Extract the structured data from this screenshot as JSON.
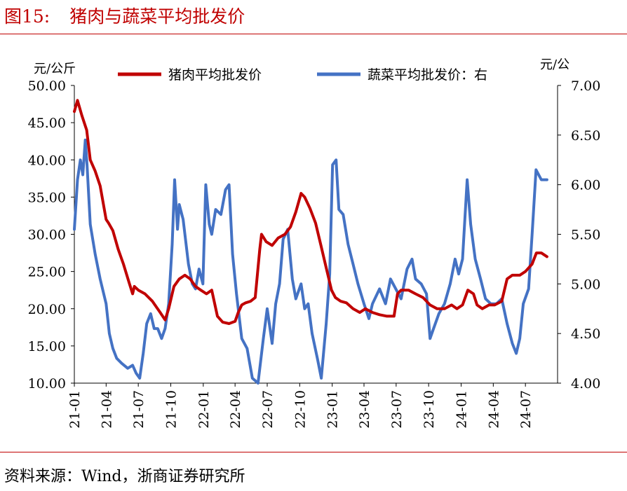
{
  "figure": {
    "number": "图15:",
    "title": "猪肉与蔬菜平均批发价",
    "source": "资料来源：Wind，浙商证券研究所"
  },
  "chart_data": {
    "type": "line",
    "left_axis": {
      "unit": "元/公斤",
      "min": 10,
      "max": 50,
      "ticks": [
        "10.00",
        "15.00",
        "20.00",
        "25.00",
        "30.00",
        "35.00",
        "40.00",
        "45.00",
        "50.00"
      ]
    },
    "right_axis": {
      "unit": "元/公",
      "min": 4,
      "max": 7,
      "ticks": [
        "4.00",
        "4.50",
        "5.00",
        "5.50",
        "6.00",
        "6.50",
        "7.00"
      ]
    },
    "x_ticks": [
      "21-01",
      "21-04",
      "21-07",
      "21-10",
      "22-01",
      "22-04",
      "22-07",
      "22-10",
      "23-01",
      "23-04",
      "23-07",
      "23-10",
      "24-01",
      "24-04",
      "24-07"
    ],
    "x_range": [
      "2021-01-01",
      "2024-09-30"
    ],
    "legend_position": "top",
    "series": [
      {
        "name": "猪肉平均批发价",
        "axis": "left",
        "color": "#c00000",
        "points": [
          [
            "2021-01-01",
            46.5
          ],
          [
            "2021-01-10",
            48.0
          ],
          [
            "2021-01-22",
            46.0
          ],
          [
            "2021-02-05",
            44.0
          ],
          [
            "2021-02-15",
            40.0
          ],
          [
            "2021-03-01",
            38.5
          ],
          [
            "2021-03-15",
            36.5
          ],
          [
            "2021-04-01",
            32.0
          ],
          [
            "2021-04-08",
            31.5
          ],
          [
            "2021-04-20",
            30.5
          ],
          [
            "2021-05-05",
            28.0
          ],
          [
            "2021-05-20",
            26.0
          ],
          [
            "2021-06-05",
            23.5
          ],
          [
            "2021-06-15",
            22.0
          ],
          [
            "2021-06-20",
            23.0
          ],
          [
            "2021-07-01",
            22.5
          ],
          [
            "2021-07-20",
            22.0
          ],
          [
            "2021-08-10",
            21.0
          ],
          [
            "2021-09-01",
            19.5
          ],
          [
            "2021-09-15",
            18.5
          ],
          [
            "2021-09-25",
            20.0
          ],
          [
            "2021-10-10",
            23.0
          ],
          [
            "2021-10-25",
            24.0
          ],
          [
            "2021-11-10",
            24.5
          ],
          [
            "2021-11-25",
            24.0
          ],
          [
            "2021-12-10",
            23.0
          ],
          [
            "2021-12-25",
            22.5
          ],
          [
            "2022-01-10",
            22.0
          ],
          [
            "2022-01-25",
            22.5
          ],
          [
            "2022-02-10",
            19.0
          ],
          [
            "2022-02-25",
            18.2
          ],
          [
            "2022-03-15",
            18.0
          ],
          [
            "2022-04-01",
            18.3
          ],
          [
            "2022-04-10",
            19.5
          ],
          [
            "2022-04-20",
            20.5
          ],
          [
            "2022-05-01",
            20.8
          ],
          [
            "2022-05-15",
            21.0
          ],
          [
            "2022-05-28",
            21.5
          ],
          [
            "2022-06-10",
            28.0
          ],
          [
            "2022-06-15",
            30.0
          ],
          [
            "2022-06-28",
            29.0
          ],
          [
            "2022-07-15",
            28.5
          ],
          [
            "2022-08-01",
            29.5
          ],
          [
            "2022-08-20",
            30.0
          ],
          [
            "2022-09-05",
            31.0
          ],
          [
            "2022-09-20",
            33.0
          ],
          [
            "2022-10-05",
            35.5
          ],
          [
            "2022-10-15",
            35.0
          ],
          [
            "2022-10-30",
            33.5
          ],
          [
            "2022-11-15",
            31.5
          ],
          [
            "2022-11-30",
            28.5
          ],
          [
            "2022-12-15",
            25.5
          ],
          [
            "2022-12-30",
            22.5
          ],
          [
            "2023-01-10",
            21.5
          ],
          [
            "2023-01-25",
            21.0
          ],
          [
            "2023-02-10",
            20.8
          ],
          [
            "2023-03-01",
            20.0
          ],
          [
            "2023-03-20",
            19.5
          ],
          [
            "2023-04-05",
            20.0
          ],
          [
            "2023-04-25",
            19.5
          ],
          [
            "2023-05-15",
            19.2
          ],
          [
            "2023-06-05",
            19.0
          ],
          [
            "2023-06-25",
            19.0
          ],
          [
            "2023-07-05",
            22.0
          ],
          [
            "2023-07-15",
            22.5
          ],
          [
            "2023-08-05",
            22.5
          ],
          [
            "2023-08-25",
            22.0
          ],
          [
            "2023-09-15",
            21.5
          ],
          [
            "2023-10-05",
            20.5
          ],
          [
            "2023-10-25",
            20.0
          ],
          [
            "2023-11-15",
            20.0
          ],
          [
            "2023-12-05",
            20.5
          ],
          [
            "2023-12-20",
            20.0
          ],
          [
            "2024-01-05",
            20.5
          ],
          [
            "2024-01-20",
            22.5
          ],
          [
            "2024-02-05",
            22.0
          ],
          [
            "2024-02-15",
            20.5
          ],
          [
            "2024-03-01",
            20.0
          ],
          [
            "2024-03-20",
            20.5
          ],
          [
            "2024-04-05",
            20.5
          ],
          [
            "2024-04-25",
            21.0
          ],
          [
            "2024-05-10",
            24.0
          ],
          [
            "2024-05-25",
            24.5
          ],
          [
            "2024-06-15",
            24.5
          ],
          [
            "2024-07-01",
            25.0
          ],
          [
            "2024-07-20",
            26.0
          ],
          [
            "2024-08-01",
            27.5
          ],
          [
            "2024-08-15",
            27.5
          ],
          [
            "2024-08-31",
            27.0
          ]
        ]
      },
      {
        "name": "蔬菜平均批发价：右",
        "axis": "right",
        "color": "#4472c4",
        "points": [
          [
            "2021-01-01",
            5.55
          ],
          [
            "2021-01-10",
            6.05
          ],
          [
            "2021-01-18",
            6.25
          ],
          [
            "2021-01-25",
            6.1
          ],
          [
            "2021-02-01",
            6.45
          ],
          [
            "2021-02-06",
            6.2
          ],
          [
            "2021-02-15",
            5.6
          ],
          [
            "2021-03-01",
            5.3
          ],
          [
            "2021-03-15",
            5.05
          ],
          [
            "2021-04-01",
            4.8
          ],
          [
            "2021-04-10",
            4.5
          ],
          [
            "2021-04-20",
            4.35
          ],
          [
            "2021-05-01",
            4.25
          ],
          [
            "2021-05-15",
            4.2
          ],
          [
            "2021-06-01",
            4.15
          ],
          [
            "2021-06-15",
            4.18
          ],
          [
            "2021-06-25",
            4.1
          ],
          [
            "2021-07-05",
            4.05
          ],
          [
            "2021-07-15",
            4.3
          ],
          [
            "2021-07-25",
            4.6
          ],
          [
            "2021-08-05",
            4.7
          ],
          [
            "2021-08-15",
            4.55
          ],
          [
            "2021-08-25",
            4.55
          ],
          [
            "2021-09-05",
            4.45
          ],
          [
            "2021-09-15",
            4.55
          ],
          [
            "2021-09-25",
            4.8
          ],
          [
            "2021-10-05",
            5.4
          ],
          [
            "2021-10-12",
            6.05
          ],
          [
            "2021-10-20",
            5.55
          ],
          [
            "2021-10-25",
            5.8
          ],
          [
            "2021-11-05",
            5.65
          ],
          [
            "2021-11-20",
            5.2
          ],
          [
            "2021-12-01",
            5.0
          ],
          [
            "2021-12-10",
            4.95
          ],
          [
            "2021-12-20",
            5.15
          ],
          [
            "2021-12-31",
            5.0
          ],
          [
            "2022-01-08",
            6.0
          ],
          [
            "2022-01-18",
            5.6
          ],
          [
            "2022-01-25",
            5.5
          ],
          [
            "2022-02-05",
            5.75
          ],
          [
            "2022-02-20",
            5.7
          ],
          [
            "2022-03-05",
            5.95
          ],
          [
            "2022-03-15",
            6.0
          ],
          [
            "2022-03-25",
            5.3
          ],
          [
            "2022-04-05",
            4.9
          ],
          [
            "2022-04-20",
            4.45
          ],
          [
            "2022-05-05",
            4.35
          ],
          [
            "2022-05-20",
            4.05
          ],
          [
            "2022-06-05",
            4.0
          ],
          [
            "2022-06-20",
            4.45
          ],
          [
            "2022-07-01",
            4.75
          ],
          [
            "2022-07-15",
            4.4
          ],
          [
            "2022-07-25",
            4.8
          ],
          [
            "2022-08-05",
            5.0
          ],
          [
            "2022-08-15",
            5.45
          ],
          [
            "2022-08-28",
            5.55
          ],
          [
            "2022-09-10",
            5.05
          ],
          [
            "2022-09-20",
            4.85
          ],
          [
            "2022-10-05",
            5.0
          ],
          [
            "2022-10-15",
            4.75
          ],
          [
            "2022-10-25",
            4.8
          ],
          [
            "2022-11-05",
            4.5
          ],
          [
            "2022-11-20",
            4.25
          ],
          [
            "2022-12-01",
            4.05
          ],
          [
            "2022-12-15",
            4.6
          ],
          [
            "2022-12-25",
            5.1
          ],
          [
            "2023-01-02",
            6.2
          ],
          [
            "2023-01-12",
            6.25
          ],
          [
            "2023-01-20",
            5.75
          ],
          [
            "2023-02-01",
            5.7
          ],
          [
            "2023-02-15",
            5.4
          ],
          [
            "2023-03-01",
            5.2
          ],
          [
            "2023-03-15",
            5.0
          ],
          [
            "2023-04-01",
            4.8
          ],
          [
            "2023-04-15",
            4.65
          ],
          [
            "2023-04-25",
            4.8
          ],
          [
            "2023-05-15",
            4.95
          ],
          [
            "2023-06-01",
            4.8
          ],
          [
            "2023-06-15",
            5.05
          ],
          [
            "2023-06-30",
            4.95
          ],
          [
            "2023-07-15",
            4.85
          ],
          [
            "2023-08-01",
            5.15
          ],
          [
            "2023-08-15",
            5.25
          ],
          [
            "2023-08-25",
            5.05
          ],
          [
            "2023-09-10",
            5.0
          ],
          [
            "2023-09-25",
            4.9
          ],
          [
            "2023-10-05",
            4.45
          ],
          [
            "2023-10-15",
            4.55
          ],
          [
            "2023-10-30",
            4.7
          ],
          [
            "2023-11-15",
            4.8
          ],
          [
            "2023-12-01",
            5.0
          ],
          [
            "2023-12-15",
            5.25
          ],
          [
            "2023-12-25",
            5.1
          ],
          [
            "2024-01-05",
            5.25
          ],
          [
            "2024-01-18",
            6.05
          ],
          [
            "2024-01-28",
            5.6
          ],
          [
            "2024-02-10",
            5.25
          ],
          [
            "2024-02-25",
            5.05
          ],
          [
            "2024-03-10",
            4.85
          ],
          [
            "2024-03-25",
            4.8
          ],
          [
            "2024-04-10",
            4.8
          ],
          [
            "2024-04-25",
            4.85
          ],
          [
            "2024-05-10",
            4.6
          ],
          [
            "2024-05-25",
            4.4
          ],
          [
            "2024-06-05",
            4.3
          ],
          [
            "2024-06-15",
            4.45
          ],
          [
            "2024-06-25",
            4.8
          ],
          [
            "2024-07-10",
            4.95
          ],
          [
            "2024-07-20",
            5.5
          ],
          [
            "2024-07-31",
            6.15
          ],
          [
            "2024-08-15",
            6.05
          ],
          [
            "2024-08-31",
            6.05
          ]
        ]
      }
    ]
  }
}
